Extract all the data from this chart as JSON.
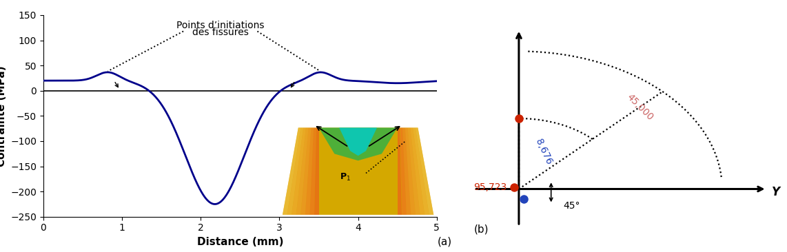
{
  "left_panel": {
    "xlim": [
      0,
      5
    ],
    "ylim": [
      -250,
      150
    ],
    "xlabel": "Distance (mm)",
    "ylabel": "Contrainte (MPa)",
    "yticks": [
      -250,
      -200,
      -150,
      -100,
      -50,
      0,
      50,
      100,
      150
    ],
    "xticks": [
      0,
      1,
      2,
      3,
      4,
      5
    ],
    "curve_color": "#00008B",
    "annotation_text1": "Points d’initiations",
    "annotation_text2": "des fissures",
    "label_a": "(a)"
  },
  "right_panel": {
    "label_b": "(b)",
    "axis_label_y": "Y",
    "label_45000": "45,000",
    "label_8676": "8,676",
    "label_95723": "95,723",
    "label_45deg": "45°",
    "red_color": "#cc2200",
    "blue_color": "#2244bb",
    "r_outer": 0.82,
    "r_inner": 0.42
  }
}
